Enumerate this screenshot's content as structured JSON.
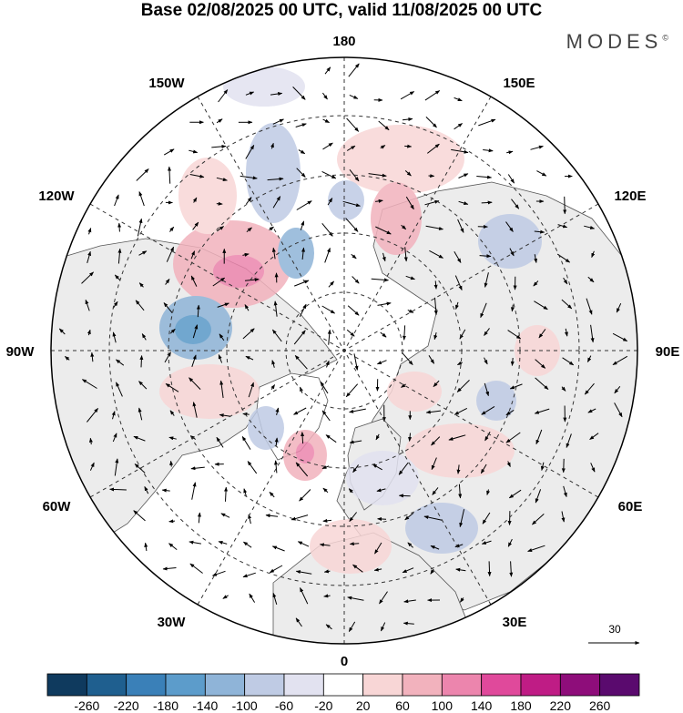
{
  "title": "Base 02/08/2025 00 UTC, valid 11/08/2025 00 UTC",
  "brand": "MODES",
  "brand_mark": "©",
  "meridian_labels": {
    "m180": "180",
    "m150w": "150W",
    "m150e": "150E",
    "m120w": "120W",
    "m120e": "120E",
    "m90w": "90W",
    "m90e": "90E",
    "m60w": "60W",
    "m60e": "60E",
    "m30w": "30W",
    "m30e": "30E",
    "m0": "0"
  },
  "vector_reference": "30",
  "colorbar": {
    "labels": [
      "-260",
      "-220",
      "-180",
      "-140",
      "-100",
      "-60",
      "-20",
      "20",
      "60",
      "100",
      "140",
      "180",
      "220",
      "260"
    ],
    "colors": [
      "#0f3a5e",
      "#1f5f8f",
      "#3a80b8",
      "#5c9ccb",
      "#8fb4d8",
      "#bfcbe4",
      "#e2e2f0",
      "#ffffff",
      "#f8d6d6",
      "#f2b2bd",
      "#ec85ad",
      "#e0499b",
      "#bf1c85",
      "#8e0d7a",
      "#5a0a6e"
    ]
  },
  "land_color": "#ececec",
  "grid_color": "#333333"
}
